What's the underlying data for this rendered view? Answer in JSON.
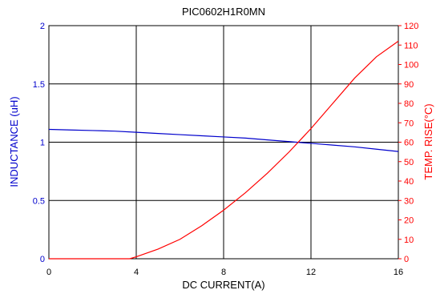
{
  "chart_data": {
    "type": "line",
    "title": "PIC0602H1R0MN",
    "xlabel": "DC CURRENT(A)",
    "ylabel_left": "INDUCTANCE (uH)",
    "ylabel_right": "TEMP. RISE(°C)",
    "xlim": [
      0,
      16
    ],
    "ylim_left": [
      0,
      2
    ],
    "ylim_right": [
      0,
      120
    ],
    "grid": true,
    "x_ticks": [
      "0",
      "4",
      "8",
      "12",
      "16"
    ],
    "y_left_ticks": [
      "0",
      "0.5",
      "1",
      "1.5",
      "2"
    ],
    "y_right_ticks": [
      "0",
      "10",
      "20",
      "30",
      "40",
      "50",
      "60",
      "70",
      "80",
      "90",
      "100",
      "110",
      "120"
    ],
    "colors": {
      "left_axis": "#0000cc",
      "right_axis": "#ff0000",
      "grid": "#000000"
    },
    "series": [
      {
        "axis": "left",
        "color": "#0000cc",
        "x": [
          0,
          1,
          2,
          3,
          4,
          5,
          6,
          7,
          8,
          9,
          10,
          11,
          12,
          13,
          14,
          15,
          16
        ],
        "y": [
          1.11,
          1.105,
          1.1,
          1.095,
          1.085,
          1.075,
          1.065,
          1.055,
          1.045,
          1.035,
          1.02,
          1.005,
          0.99,
          0.975,
          0.96,
          0.94,
          0.92
        ]
      },
      {
        "axis": "right",
        "color": "#ff0000",
        "x": [
          0,
          1,
          2,
          3,
          3.7,
          4,
          5,
          6,
          7,
          8,
          9,
          10,
          11,
          12,
          13,
          14,
          15,
          16
        ],
        "y": [
          0,
          0,
          0,
          0,
          0,
          1,
          5,
          10,
          17,
          25,
          34,
          44,
          55,
          67,
          80,
          93,
          104,
          112
        ]
      }
    ]
  }
}
